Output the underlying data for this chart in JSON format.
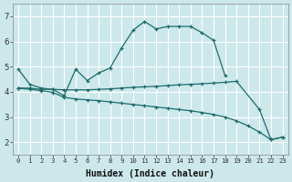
{
  "xlabel": "Humidex (Indice chaleur)",
  "bg_color": "#cce8eb",
  "grid_color": "#ffffff",
  "line_color": "#1e6b6b",
  "xlim": [
    -0.5,
    23.5
  ],
  "ylim": [
    1.5,
    7.5
  ],
  "xticks": [
    0,
    1,
    2,
    3,
    4,
    5,
    6,
    7,
    8,
    9,
    10,
    11,
    12,
    13,
    14,
    15,
    16,
    17,
    18,
    19,
    20,
    21,
    22,
    23
  ],
  "yticks": [
    2,
    3,
    4,
    5,
    6,
    7
  ],
  "lines": [
    {
      "x": [
        0,
        1,
        2,
        3,
        4,
        5,
        6,
        7,
        8,
        9,
        10,
        11,
        12,
        13,
        14,
        15,
        16,
        17,
        18
      ],
      "y": [
        4.9,
        4.3,
        4.15,
        4.1,
        3.85,
        4.9,
        4.45,
        4.75,
        4.95,
        5.75,
        6.45,
        6.8,
        6.5,
        6.6,
        6.6,
        6.6,
        6.35,
        6.05,
        4.65
      ]
    },
    {
      "x": [
        0,
        1,
        2,
        3,
        4,
        5,
        6,
        7,
        8,
        9,
        10,
        11,
        12,
        13,
        14,
        15,
        16,
        17,
        18,
        19,
        21,
        22,
        23
      ],
      "y": [
        4.15,
        4.15,
        4.1,
        4.1,
        4.08,
        4.08,
        4.08,
        4.1,
        4.12,
        4.15,
        4.18,
        4.2,
        4.22,
        4.25,
        4.28,
        4.3,
        4.32,
        4.35,
        4.38,
        4.42,
        3.3,
        2.1,
        2.2
      ]
    },
    {
      "x": [
        0,
        1,
        2,
        3,
        4,
        5,
        6,
        7,
        8,
        9,
        10,
        11,
        12,
        13,
        14,
        15,
        16,
        17,
        18,
        19,
        20,
        21,
        22,
        23
      ],
      "y": [
        4.15,
        4.1,
        4.05,
        3.98,
        3.78,
        3.72,
        3.68,
        3.65,
        3.6,
        3.55,
        3.5,
        3.45,
        3.4,
        3.35,
        3.3,
        3.25,
        3.18,
        3.1,
        3.0,
        2.85,
        2.65,
        2.4,
        2.1,
        2.2
      ]
    }
  ]
}
